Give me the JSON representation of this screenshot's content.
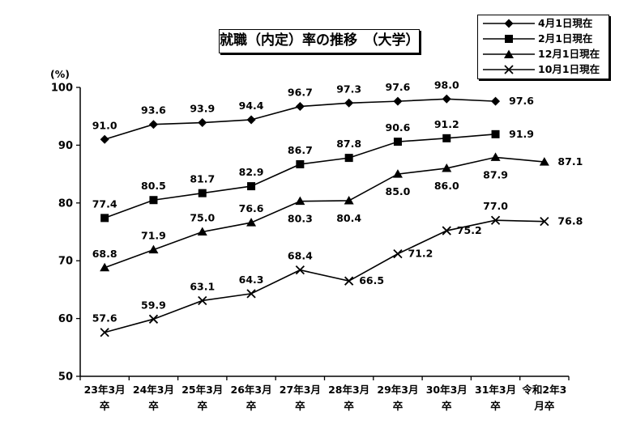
{
  "chart_data": {
    "type": "line",
    "title": "就職（内定）率の推移　（大学）",
    "ylabel": "(%)",
    "ylim": [
      50,
      100
    ],
    "yticks": [
      50,
      60,
      70,
      80,
      90,
      100
    ],
    "grid": false,
    "legend_position": "top-right",
    "categories": [
      [
        "23年3月",
        "卒"
      ],
      [
        "24年3月",
        "卒"
      ],
      [
        "25年3月",
        "卒"
      ],
      [
        "26年3月",
        "卒"
      ],
      [
        "27年3月",
        "卒"
      ],
      [
        "28年3月",
        "卒"
      ],
      [
        "29年3月",
        "卒"
      ],
      [
        "30年3月",
        "卒"
      ],
      [
        "31年3月",
        "卒"
      ],
      [
        "令和2年3",
        "月卒"
      ]
    ],
    "series": [
      {
        "name": "4月1日現在",
        "marker": "diamond",
        "values": [
          91.0,
          93.6,
          93.9,
          94.4,
          96.7,
          97.3,
          97.6,
          98.0,
          97.6,
          null
        ],
        "labels": [
          "91.0",
          "93.6",
          "93.9",
          "94.4",
          "96.7",
          "97.3",
          "97.6",
          "98.0",
          "97.6",
          null
        ]
      },
      {
        "name": "2月1日現在",
        "marker": "square",
        "values": [
          77.4,
          80.5,
          81.7,
          82.9,
          86.7,
          87.8,
          90.6,
          91.2,
          91.9,
          null
        ],
        "labels": [
          "77.4",
          "80.5",
          "81.7",
          "82.9",
          "86.7",
          "87.8",
          "90.6",
          "91.2",
          "91.9",
          null
        ]
      },
      {
        "name": "12月1日現在",
        "marker": "triangle",
        "values": [
          68.8,
          71.9,
          75.0,
          76.6,
          80.3,
          80.4,
          85.0,
          86.0,
          87.9,
          87.1
        ],
        "labels": [
          "68.8",
          "71.9",
          "75.0",
          "76.6",
          "80.3",
          "80.4",
          "85.0",
          "86.0",
          "87.9",
          "87.1"
        ]
      },
      {
        "name": "10月1日現在",
        "marker": "x",
        "values": [
          57.6,
          59.9,
          63.1,
          64.3,
          68.4,
          66.5,
          71.2,
          75.2,
          77.0,
          76.8
        ],
        "labels": [
          "57.6",
          "59.9",
          "63.1",
          "64.3",
          "68.4",
          "66.5",
          "71.2",
          "75.2",
          "77.0",
          "76.8"
        ]
      }
    ]
  }
}
